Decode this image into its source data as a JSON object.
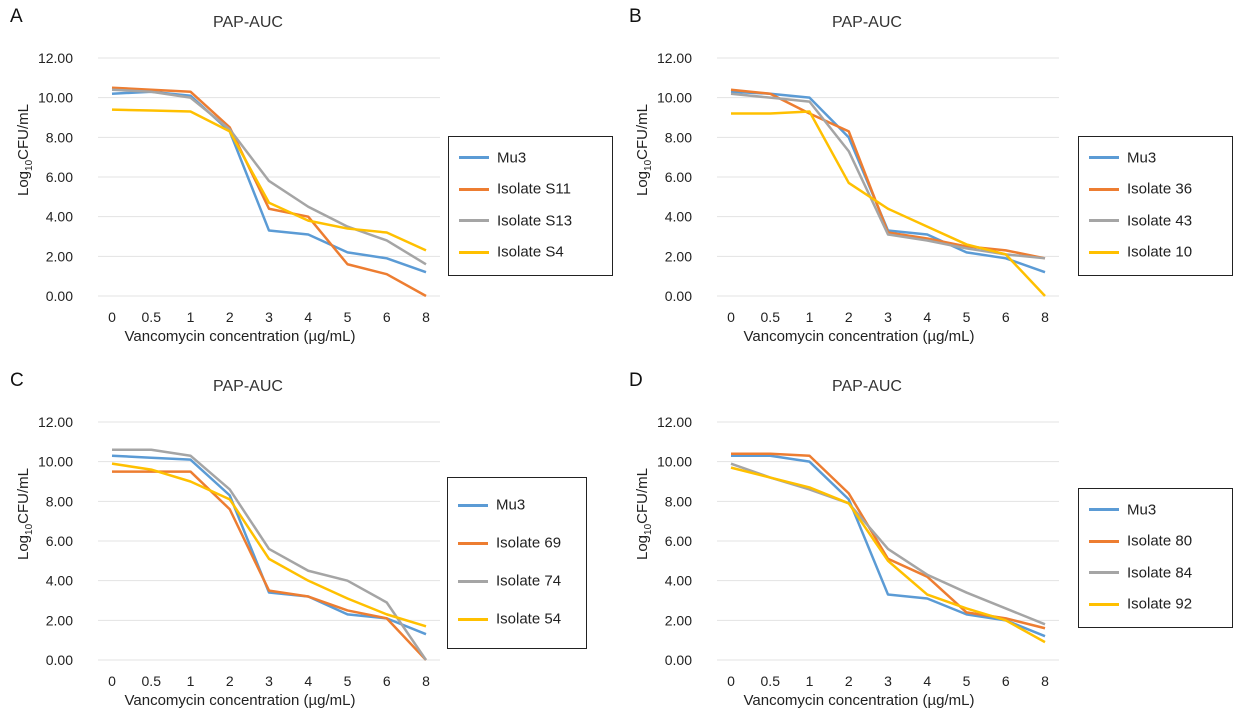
{
  "chart_data": [
    {
      "panel": "A",
      "type": "line",
      "title": "PAP-AUC",
      "xlabel": "Vancomycin concentration (µg/mL)",
      "ylabel_main": "Log",
      "ylabel_sub": "10",
      "ylabel_tail": "CFU/mL",
      "categories": [
        "0",
        "0.5",
        "1",
        "2",
        "3",
        "4",
        "5",
        "6",
        "8"
      ],
      "ylim": [
        0,
        12
      ],
      "yticks": [
        "0.00",
        "2.00",
        "4.00",
        "6.00",
        "8.00",
        "10.00",
        "12.00"
      ],
      "grid": true,
      "legend_position": "right",
      "series": [
        {
          "name": "Mu3",
          "color": "#5b9bd5",
          "values": [
            10.2,
            10.3,
            10.1,
            8.3,
            3.3,
            3.1,
            2.2,
            1.9,
            1.2
          ]
        },
        {
          "name": "Isolate S11",
          "color": "#ed7d31",
          "values": [
            10.5,
            10.4,
            10.3,
            8.5,
            4.4,
            4.0,
            1.6,
            1.1,
            0.0
          ]
        },
        {
          "name": "Isolate S13",
          "color": "#a5a5a5",
          "values": [
            10.4,
            10.3,
            10.0,
            8.4,
            5.8,
            4.5,
            3.5,
            2.8,
            1.6
          ]
        },
        {
          "name": "Isolate S4",
          "color": "#ffc000",
          "values": [
            9.4,
            9.35,
            9.3,
            8.3,
            4.7,
            3.8,
            3.4,
            3.2,
            2.3
          ]
        }
      ]
    },
    {
      "panel": "B",
      "type": "line",
      "title": "PAP-AUC",
      "xlabel": "Vancomycin concentration (µg/mL)",
      "ylabel_main": "Log",
      "ylabel_sub": "10",
      "ylabel_tail": "CFU/mL",
      "categories": [
        "0",
        "0.5",
        "1",
        "2",
        "3",
        "4",
        "5",
        "6",
        "8"
      ],
      "ylim": [
        0,
        12
      ],
      "yticks": [
        "0.00",
        "2.00",
        "4.00",
        "6.00",
        "8.00",
        "10.00",
        "12.00"
      ],
      "grid": true,
      "legend_position": "right",
      "series": [
        {
          "name": "Mu3",
          "color": "#5b9bd5",
          "values": [
            10.3,
            10.2,
            10.0,
            8.0,
            3.3,
            3.1,
            2.2,
            1.9,
            1.2
          ]
        },
        {
          "name": "Isolate 36",
          "color": "#ed7d31",
          "values": [
            10.4,
            10.2,
            9.2,
            8.3,
            3.2,
            2.9,
            2.5,
            2.3,
            1.9
          ]
        },
        {
          "name": "Isolate 43",
          "color": "#a5a5a5",
          "values": [
            10.2,
            10.0,
            9.8,
            7.3,
            3.1,
            2.8,
            2.4,
            2.1,
            1.9
          ]
        },
        {
          "name": "Isolate 10",
          "color": "#ffc000",
          "values": [
            9.2,
            9.2,
            9.3,
            5.7,
            4.4,
            3.5,
            2.6,
            2.1,
            0.0
          ]
        }
      ]
    },
    {
      "panel": "C",
      "type": "line",
      "title": "PAP-AUC",
      "xlabel": "Vancomycin concentration (µg/mL)",
      "ylabel_main": "Log",
      "ylabel_sub": "10",
      "ylabel_tail": "CFU/mL",
      "categories": [
        "0",
        "0.5",
        "1",
        "2",
        "3",
        "4",
        "5",
        "6",
        "8"
      ],
      "ylim": [
        0,
        12
      ],
      "yticks": [
        "0.00",
        "2.00",
        "4.00",
        "6.00",
        "8.00",
        "10.00",
        "12.00"
      ],
      "grid": true,
      "legend_position": "right",
      "series": [
        {
          "name": "Mu3",
          "color": "#5b9bd5",
          "values": [
            10.3,
            10.2,
            10.1,
            8.3,
            3.4,
            3.2,
            2.3,
            2.1,
            1.3
          ]
        },
        {
          "name": "Isolate 69",
          "color": "#ed7d31",
          "values": [
            9.5,
            9.5,
            9.5,
            7.6,
            3.5,
            3.2,
            2.5,
            2.1,
            0.0
          ]
        },
        {
          "name": "Isolate 74",
          "color": "#a5a5a5",
          "values": [
            10.6,
            10.6,
            10.3,
            8.6,
            5.6,
            4.5,
            4.0,
            2.9,
            0.0
          ]
        },
        {
          "name": "Isolate 54",
          "color": "#ffc000",
          "values": [
            9.9,
            9.6,
            9.0,
            8.1,
            5.1,
            4.0,
            3.1,
            2.3,
            1.7
          ]
        }
      ]
    },
    {
      "panel": "D",
      "type": "line",
      "title": "PAP-AUC",
      "xlabel": "Vancomycin concentration (µg/mL)",
      "ylabel_main": "Log",
      "ylabel_sub": "10",
      "ylabel_tail": "CFU/mL",
      "categories": [
        "0",
        "0.5",
        "1",
        "2",
        "3",
        "4",
        "5",
        "6",
        "8"
      ],
      "ylim": [
        0,
        12
      ],
      "yticks": [
        "0.00",
        "2.00",
        "4.00",
        "6.00",
        "8.00",
        "10.00",
        "12.00"
      ],
      "grid": true,
      "legend_position": "right",
      "series": [
        {
          "name": "Mu3",
          "color": "#5b9bd5",
          "values": [
            10.3,
            10.3,
            10.0,
            8.1,
            3.3,
            3.1,
            2.3,
            2.0,
            1.2
          ]
        },
        {
          "name": "Isolate 80",
          "color": "#ed7d31",
          "values": [
            10.4,
            10.4,
            10.3,
            8.4,
            5.1,
            4.2,
            2.4,
            2.1,
            1.6
          ]
        },
        {
          "name": "Isolate 84",
          "color": "#a5a5a5",
          "values": [
            9.9,
            9.2,
            8.6,
            7.9,
            5.6,
            4.3,
            3.4,
            2.6,
            1.8
          ]
        },
        {
          "name": "Isolate 92",
          "color": "#ffc000",
          "values": [
            9.7,
            9.2,
            8.7,
            7.9,
            5.0,
            3.3,
            2.6,
            2.0,
            0.9
          ]
        }
      ]
    }
  ]
}
